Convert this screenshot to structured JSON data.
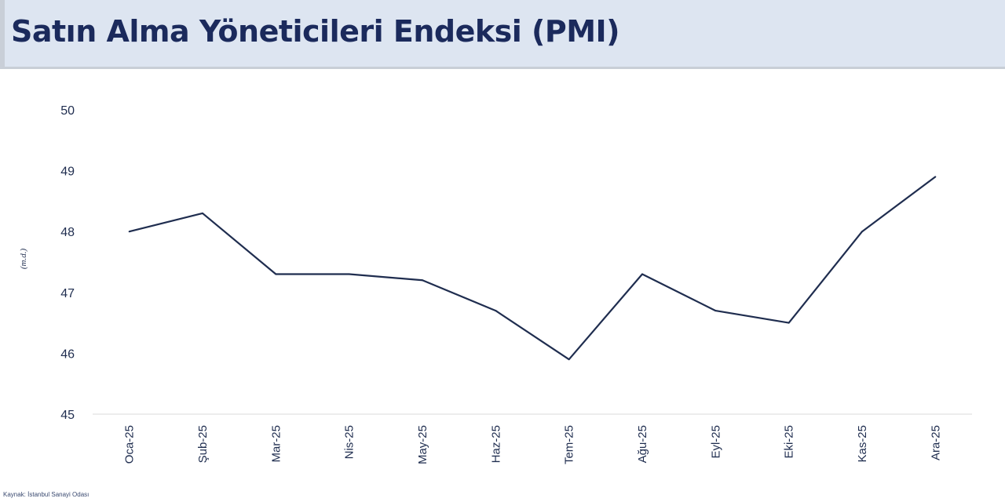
{
  "header": {
    "title": "Satın Alma Yöneticileri Endeksi (PMI)"
  },
  "source": "Kaynak: İstanbul Sanayi Odası",
  "colors": {
    "line": "#1f2d4f",
    "title": "#1b2a5c",
    "header_bg": "#dde5f1"
  },
  "chart_data": {
    "type": "line",
    "title": "",
    "xlabel": "",
    "ylabel": "(m.d.)",
    "ylim": [
      45,
      50
    ],
    "yticks": [
      "45",
      "46",
      "47",
      "48",
      "49",
      "50"
    ],
    "grid": false,
    "categories": [
      "Oca-25",
      "Şub-25",
      "Mar-25",
      "Nis-25",
      "May-25",
      "Haz-25",
      "Tem-25",
      "Ağu-25",
      "Eyl-25",
      "Eki-25",
      "Kas-25",
      "Ara-25"
    ],
    "series": [
      {
        "values": [
          48.0,
          48.3,
          47.3,
          47.3,
          47.2,
          46.7,
          45.9,
          47.3,
          46.7,
          46.5,
          48.0,
          48.9
        ]
      }
    ]
  }
}
